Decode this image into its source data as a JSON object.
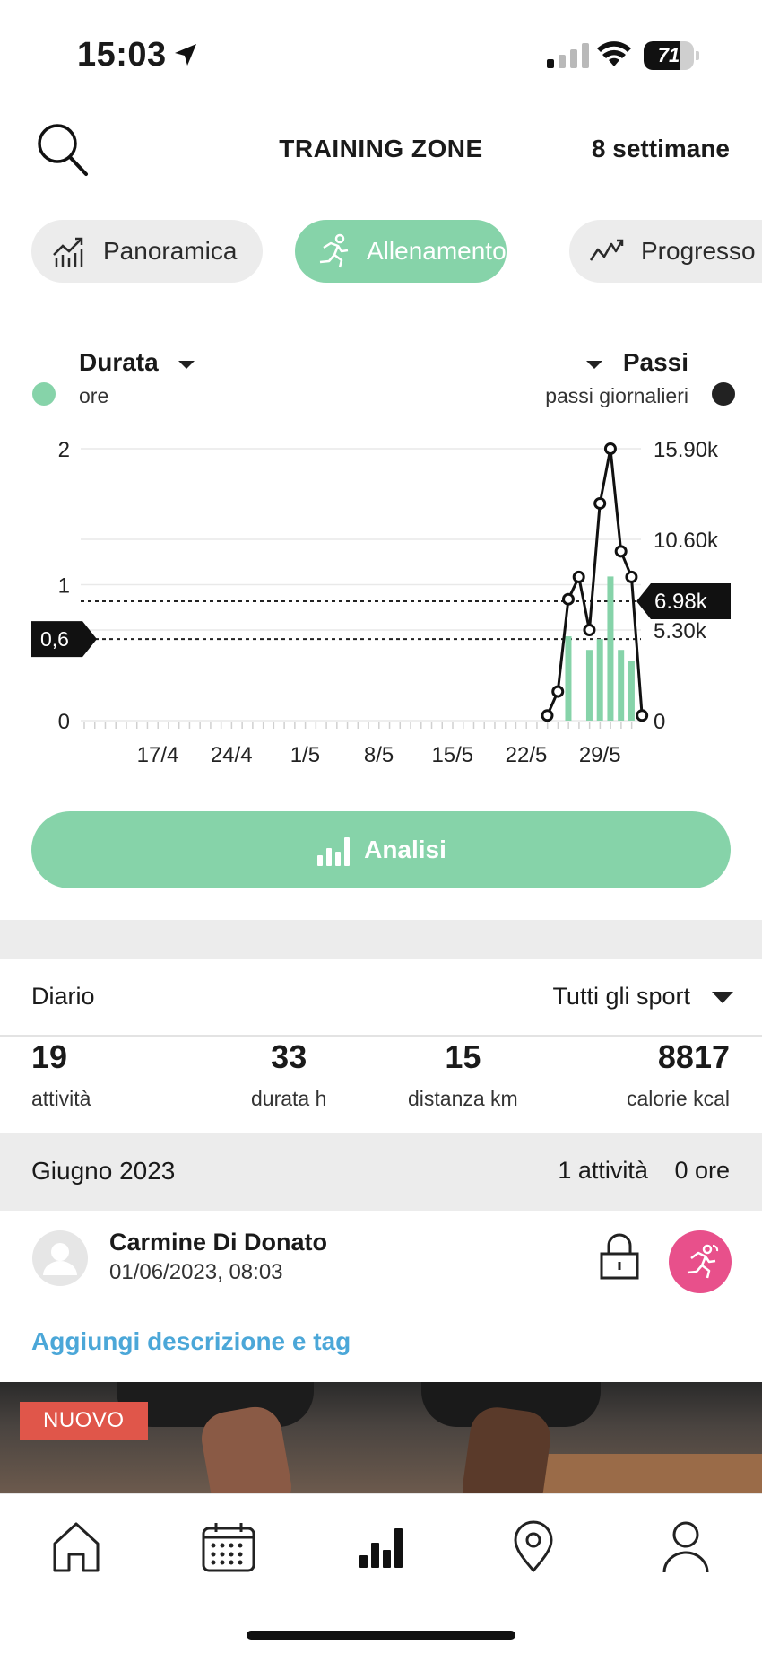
{
  "status_bar": {
    "time": "15:03",
    "battery": "71",
    "battery_level": 0.71
  },
  "header": {
    "title": "TRAINING ZONE",
    "period": "8 settimane"
  },
  "tabs": [
    {
      "label": "Panoramica",
      "icon": "trend-chart-icon",
      "active": false
    },
    {
      "label": "Allenamento",
      "icon": "runner-icon",
      "active": true
    },
    {
      "label": "Progresso",
      "icon": "progress-line-icon",
      "active": false
    }
  ],
  "legend": {
    "left": {
      "title": "Durata",
      "unit": "ore",
      "color": "#86d3a9"
    },
    "right": {
      "title": "Passi",
      "unit": "passi giornalieri",
      "color": "#222222"
    }
  },
  "chart_data": {
    "type": "bar",
    "x_ticks": [
      "17/4",
      "24/4",
      "1/5",
      "8/5",
      "15/5",
      "22/5",
      "29/5"
    ],
    "y_left": {
      "ticks": [
        "2",
        "1",
        "0"
      ],
      "ylim": [
        0,
        2
      ]
    },
    "y_right": {
      "ticks": [
        "15.90k",
        "10.60k",
        "5.30k",
        "0"
      ],
      "ylim": [
        0,
        15900
      ]
    },
    "series": [
      {
        "name": "Durata",
        "kind": "bar",
        "axis": "left",
        "points": [
          {
            "x": "26/5",
            "y": 0.62
          },
          {
            "x": "28/5",
            "y": 0.52
          },
          {
            "x": "29/5",
            "y": 0.6
          },
          {
            "x": "30/5",
            "y": 1.06
          },
          {
            "x": "31/5",
            "y": 0.52
          },
          {
            "x": "1/6",
            "y": 0.44
          }
        ]
      },
      {
        "name": "Passi",
        "kind": "line",
        "axis": "right",
        "points": [
          {
            "x": "24/5",
            "y": 300
          },
          {
            "x": "25/5",
            "y": 1700
          },
          {
            "x": "26/5",
            "y": 7100
          },
          {
            "x": "27/5",
            "y": 8400
          },
          {
            "x": "28/5",
            "y": 5300
          },
          {
            "x": "29/5",
            "y": 12700
          },
          {
            "x": "30/5",
            "y": 15900
          },
          {
            "x": "31/5",
            "y": 9900
          },
          {
            "x": "1/6",
            "y": 8400
          },
          {
            "x": "2/6",
            "y": 300
          }
        ]
      }
    ],
    "reference_lines": [
      {
        "axis": "left",
        "value": 0.6,
        "label": "0,6"
      },
      {
        "axis": "right",
        "value": 6980,
        "label": "6.98k"
      }
    ],
    "grid": true
  },
  "analisi_button": {
    "label": "Analisi"
  },
  "diary": {
    "label": "Diario",
    "filter": "Tutti gli sport",
    "stats": [
      {
        "value": "19",
        "label": "attività"
      },
      {
        "value": "33",
        "label": "durata h"
      },
      {
        "value": "15",
        "label": "distanza km"
      },
      {
        "value": "8817",
        "label": "calorie kcal"
      }
    ]
  },
  "month": {
    "name": "Giugno 2023",
    "activities": "1 attività",
    "hours": "0 ore"
  },
  "activity": {
    "user": "Carmine Di Donato",
    "datetime": "01/06/2023, 08:03",
    "add_description": "Aggiungi descrizione e tag",
    "badge_color": "#e8508b"
  },
  "promo": {
    "badge": "NUOVO"
  },
  "bottom_nav": [
    {
      "icon": "home-icon"
    },
    {
      "icon": "calendar-icon"
    },
    {
      "icon": "bar-chart-icon",
      "active": true
    },
    {
      "icon": "map-pin-icon"
    },
    {
      "icon": "profile-icon"
    }
  ]
}
